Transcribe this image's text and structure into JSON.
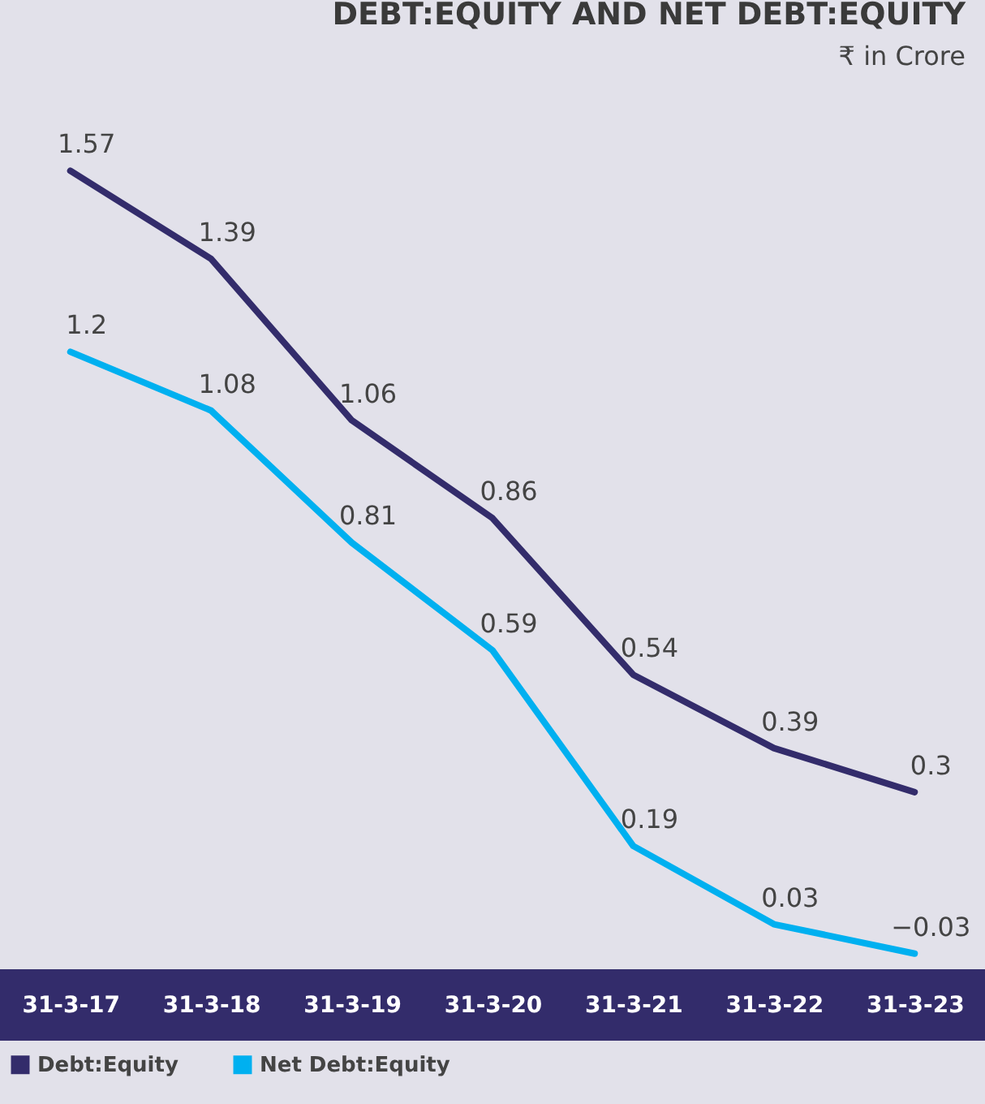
{
  "chart_data": {
    "type": "line",
    "title": "DEBT:EQUITY AND NET DEBT:EQUITY",
    "subtitle": "₹ in Crore",
    "categories": [
      "31-3-17",
      "31-3-18",
      "31-3-19",
      "31-3-20",
      "31-3-21",
      "31-3-22",
      "31-3-23"
    ],
    "series": [
      {
        "name": "Debt:Equity",
        "color": "#332c6b",
        "values": [
          1.57,
          1.39,
          1.06,
          0.86,
          0.54,
          0.39,
          0.3
        ]
      },
      {
        "name": "Net Debt:Equity",
        "color": "#00b0f0",
        "values": [
          1.2,
          1.08,
          0.81,
          0.59,
          0.19,
          0.03,
          -0.03
        ]
      }
    ],
    "data_labels": true,
    "legend": "bottom left",
    "grid": false
  }
}
